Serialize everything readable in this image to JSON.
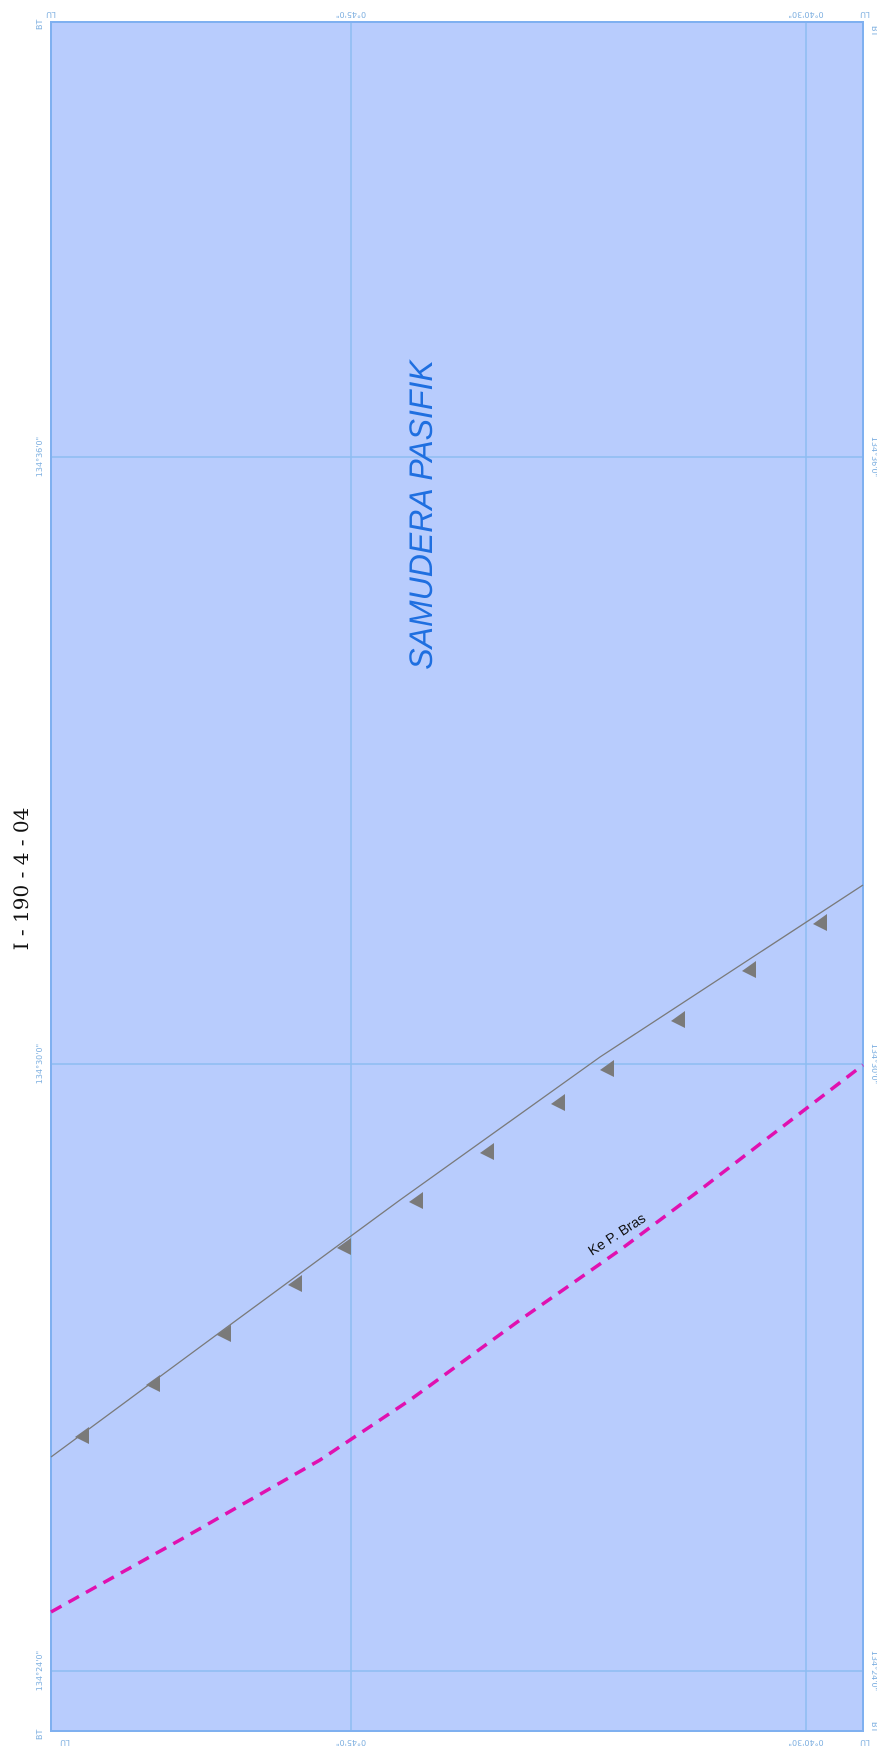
{
  "sheet_id": "I - 190 - 4 - 04",
  "sea_name": "SAMUDERA PASIFIK",
  "route_label": "Ke P. Bras",
  "grid": {
    "longitudes": [
      "134°24'0\"",
      "134°30'0\"",
      "134°36'0\""
    ],
    "latitudes": [
      "0°45'0\"",
      "0°40'30\""
    ],
    "hemisphere_lon": "BT",
    "hemisphere_lat": "LU"
  },
  "legend_symbols": {
    "shoreline": "gray line with triangle marks",
    "route": "magenta dashed line"
  },
  "colors": {
    "sea": "#b8ccfd",
    "grid": "#8cbcf2",
    "frame": "#7fb0f0",
    "shoreline": "#7a7a7a",
    "route": "#e011b0",
    "sea_label": "#1f6fe0"
  }
}
